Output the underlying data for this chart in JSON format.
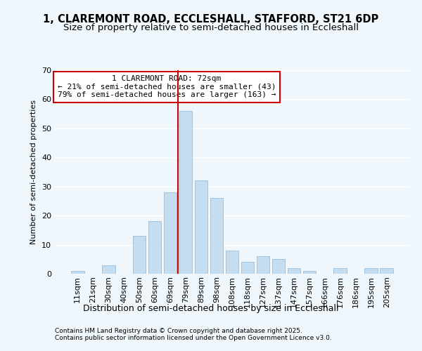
{
  "title1": "1, CLAREMONT ROAD, ECCLESHALL, STAFFORD, ST21 6DP",
  "title2": "Size of property relative to semi-detached houses in Eccleshall",
  "xlabel": "Distribution of semi-detached houses by size in Eccleshall",
  "ylabel": "Number of semi-detached properties",
  "categories": [
    "11sqm",
    "21sqm",
    "30sqm",
    "40sqm",
    "50sqm",
    "60sqm",
    "69sqm",
    "79sqm",
    "89sqm",
    "98sqm",
    "108sqm",
    "118sqm",
    "127sqm",
    "137sqm",
    "147sqm",
    "157sqm",
    "166sqm",
    "176sqm",
    "186sqm",
    "195sqm",
    "205sqm"
  ],
  "values": [
    1,
    0,
    3,
    0,
    13,
    18,
    28,
    56,
    32,
    26,
    8,
    4,
    6,
    5,
    2,
    1,
    0,
    2,
    0,
    2,
    2
  ],
  "bar_color": "#c5ddf0",
  "bar_edge_color": "#a0c4e0",
  "vline_color": "#cc0000",
  "vline_index": 6.5,
  "annotation_title": "1 CLAREMONT ROAD: 72sqm",
  "annotation_line1": "← 21% of semi-detached houses are smaller (43)",
  "annotation_line2": "79% of semi-detached houses are larger (163) →",
  "footer1": "Contains HM Land Registry data © Crown copyright and database right 2025.",
  "footer2": "Contains public sector information licensed under the Open Government Licence v3.0.",
  "ylim": [
    0,
    70
  ],
  "yticks": [
    0,
    10,
    20,
    30,
    40,
    50,
    60,
    70
  ],
  "bg_color": "#f0f7fc",
  "plot_bg_color": "#f0f7fc",
  "grid_color": "#ffffff",
  "annotation_box_edgecolor": "#cc0000",
  "annotation_box_facecolor": "#ffffff",
  "title1_fontsize": 10.5,
  "title2_fontsize": 9.5,
  "ylabel_fontsize": 8,
  "xlabel_fontsize": 9,
  "tick_fontsize": 8,
  "footer_fontsize": 6.5,
  "ann_fontsize": 8
}
